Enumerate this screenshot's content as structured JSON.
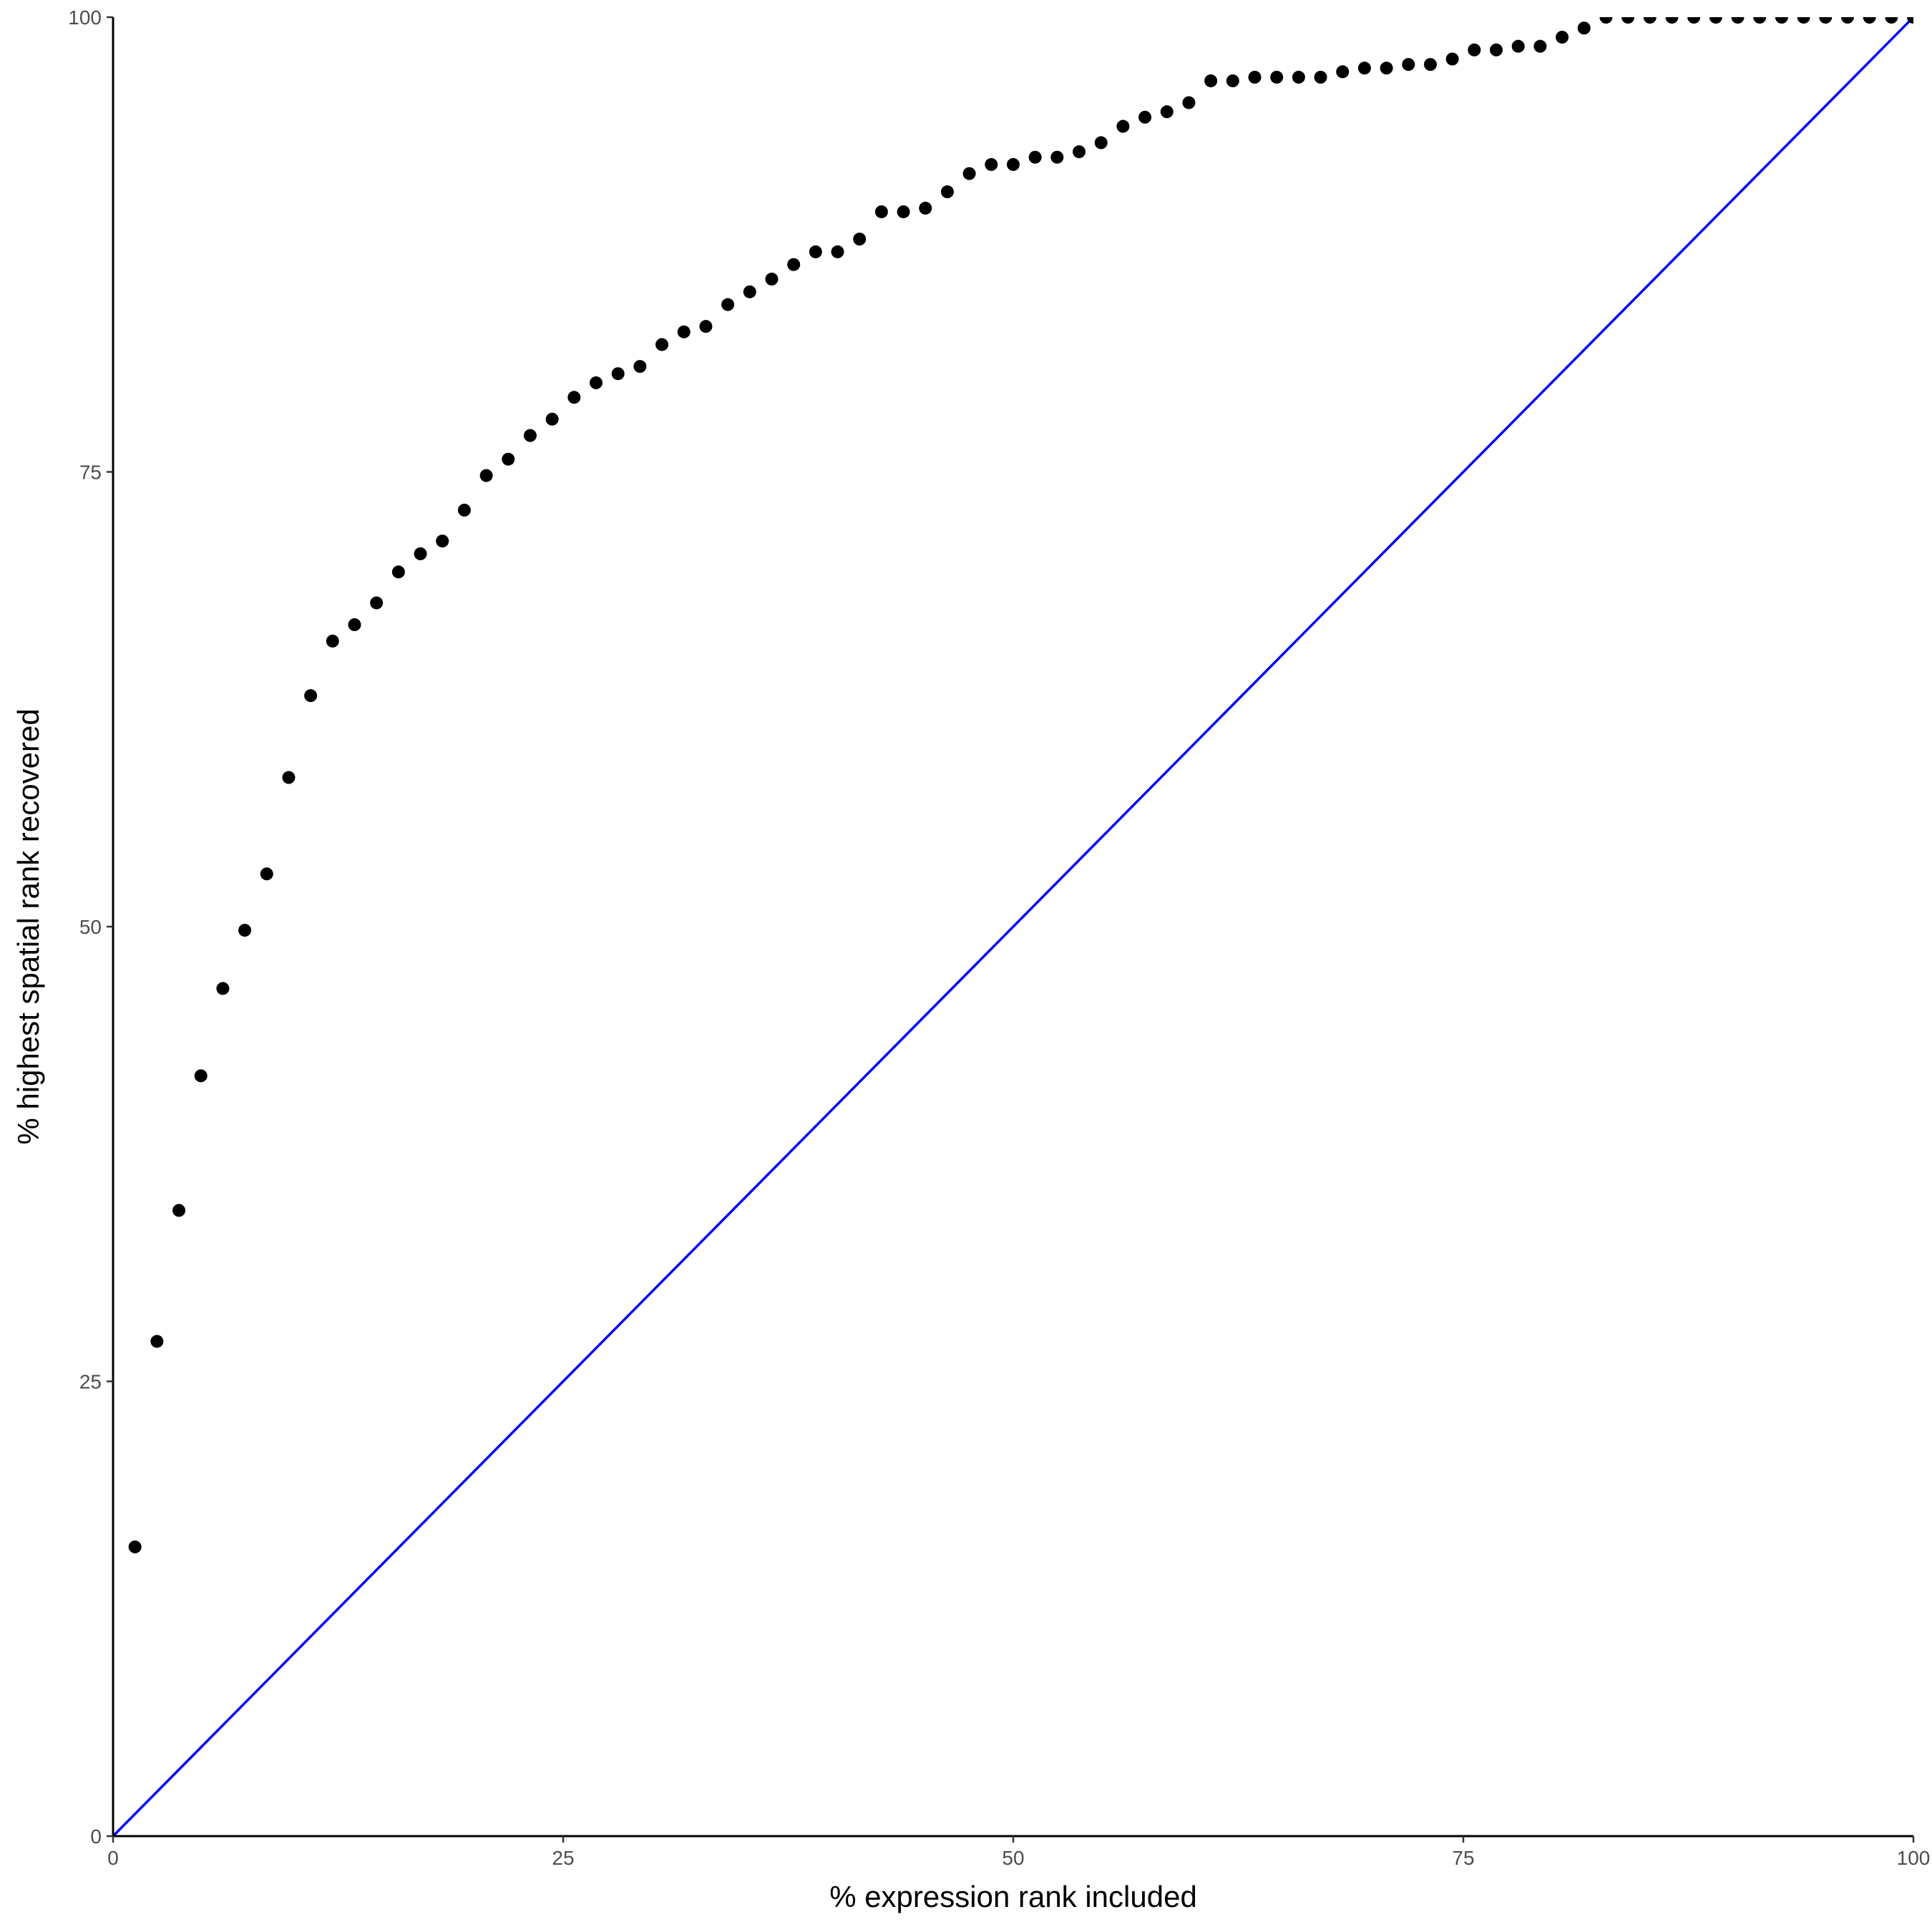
{
  "chart_data": {
    "type": "scatter",
    "title": "",
    "xlabel": "% expression rank included",
    "ylabel": "% highest spatial rank recovered",
    "xlim": [
      0,
      100
    ],
    "ylim": [
      0,
      100
    ],
    "xticks": [
      "0",
      "25",
      "50",
      "75",
      "100"
    ],
    "yticks": [
      "0",
      "25",
      "50",
      "75",
      "100"
    ],
    "grid": false,
    "colors": {
      "points": "#000000",
      "reference_line": "#0000FF"
    },
    "reference_line": {
      "from": [
        0,
        0
      ],
      "to": [
        100,
        100
      ]
    },
    "series": [
      {
        "y": [
          15.9,
          27.2,
          34.4,
          41.8,
          46.6,
          49.8,
          52.9,
          58.2,
          62.7,
          65.7,
          66.6,
          67.8,
          69.5,
          70.5,
          71.2,
          72.9,
          74.8,
          75.7,
          77.0,
          77.9,
          79.1,
          79.9,
          80.4,
          80.8,
          82.0,
          82.7,
          83.0,
          84.2,
          84.9,
          85.6,
          86.4,
          87.1,
          87.1,
          87.8,
          89.3,
          89.3,
          89.5,
          90.4,
          91.4,
          91.9,
          91.9,
          92.3,
          92.3,
          92.6,
          93.1,
          94.0,
          94.5,
          94.8,
          95.3,
          96.5,
          96.5,
          96.7,
          96.7,
          96.7,
          96.7,
          97.0,
          97.2,
          97.2,
          97.4,
          97.4,
          97.7,
          98.2,
          98.2,
          98.4,
          98.4,
          98.9,
          99.4,
          100,
          100,
          100,
          100,
          100,
          100,
          100,
          100,
          100,
          100,
          100,
          100,
          100,
          100,
          100
        ]
      }
    ]
  }
}
